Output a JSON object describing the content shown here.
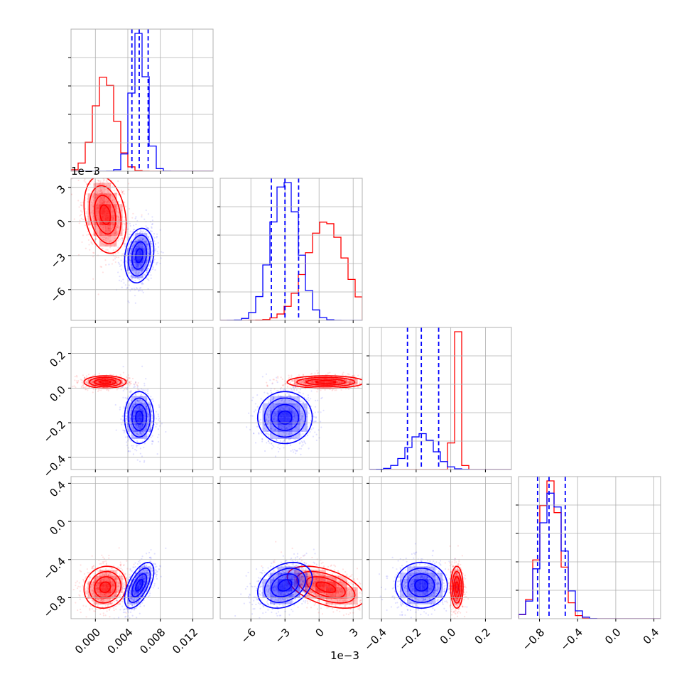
{
  "colors": {
    "red": "#ff0000",
    "blue": "#0000ff",
    "grid": "#b0b0b0",
    "frame": "#000000"
  },
  "labels": {
    "offset_p0": "1e−3",
    "offset_x1": "1e−3"
  },
  "chart_data": {
    "type": "corner",
    "parameters": [
      {
        "range": [
          -0.003,
          0.0145
        ],
        "ticks": [
          0.0,
          0.004,
          0.008,
          0.012
        ],
        "tick_labels": [
          "0.000",
          "0.004",
          "0.008",
          "0.012"
        ],
        "offset_text": ""
      },
      {
        "range": [
          -0.0087,
          0.0038
        ],
        "ticks": [
          -0.006,
          -0.003,
          0.0,
          0.003
        ],
        "tick_labels": [
          "−6",
          "−3",
          "0",
          "3"
        ],
        "offset_text": "1e−3"
      },
      {
        "range": [
          -0.47,
          0.35
        ],
        "ticks": [
          -0.4,
          -0.2,
          0.0,
          0.2
        ],
        "tick_labels": [
          "−0.4",
          "−0.2",
          "0.0",
          "0.2"
        ],
        "offset_text": ""
      },
      {
        "range": [
          -1.02,
          0.47
        ],
        "ticks": [
          -0.8,
          -0.4,
          0.0,
          0.4
        ],
        "tick_labels": [
          "−0.8",
          "−0.4",
          "0.0",
          "0.4"
        ],
        "offset_text": ""
      }
    ],
    "series": [
      {
        "color": "red",
        "means": [
          0.0012,
          0.0006,
          0.035,
          -0.69
        ],
        "stds": [
          0.0013,
          0.0017,
          0.018,
          0.11
        ],
        "quantile_lines": false
      },
      {
        "color": "blue",
        "means": [
          0.0054,
          -0.003,
          -0.17,
          -0.67
        ],
        "stds": [
          0.0009,
          0.0012,
          0.075,
          0.12
        ],
        "quantile_lines": true,
        "quantiles": [
          [
            0.0045,
            0.0054,
            0.0065
          ],
          [
            -0.0042,
            -0.003,
            -0.0018
          ],
          [
            -0.25,
            -0.17,
            -0.07
          ],
          [
            -0.82,
            -0.7,
            -0.53
          ]
        ]
      }
    ],
    "correlations": {
      "red": {
        "0-1": -0.25,
        "0-2": 0.0,
        "1-2": 0.0,
        "0-3": 0.1,
        "1-3": -0.5,
        "2-3": 0.0
      },
      "blue": {
        "0-1": 0.2,
        "0-2": 0.0,
        "1-2": 0.0,
        "0-3": 0.6,
        "1-3": 0.3,
        "2-3": 0.0
      }
    },
    "contour_sigma_levels": [
      0.5,
      1.0,
      1.5,
      2.0
    ],
    "grid": true
  }
}
